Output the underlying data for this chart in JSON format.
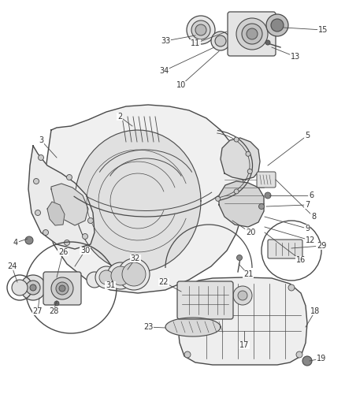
{
  "bg_color": "#ffffff",
  "line_color": "#4a4a4a",
  "label_color": "#333333",
  "label_fontsize": 7.0,
  "fig_w": 4.38,
  "fig_h": 5.33,
  "dpi": 100
}
